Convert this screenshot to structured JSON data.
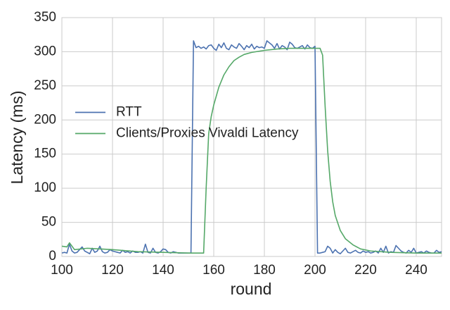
{
  "chart_data": {
    "type": "line",
    "x_label": "round",
    "y_label": "Latency (ms)",
    "xlim": [
      100,
      250
    ],
    "xticks": [
      100,
      120,
      140,
      160,
      180,
      200,
      220,
      240
    ],
    "ylim": [
      0,
      350
    ],
    "yticks": [
      0,
      50,
      100,
      150,
      200,
      250,
      300,
      350
    ],
    "grid": true,
    "legend": "center left",
    "series": [
      {
        "name": "RTT",
        "color": "#4c72b0",
        "x": [
          100,
          101,
          102,
          103,
          104,
          105,
          106,
          107,
          108,
          109,
          110,
          111,
          112,
          113,
          114,
          115,
          116,
          117,
          118,
          119,
          120,
          121,
          122,
          123,
          124,
          125,
          126,
          127,
          128,
          129,
          130,
          131,
          132,
          133,
          134,
          135,
          136,
          137,
          138,
          139,
          140,
          141,
          142,
          143,
          144,
          145,
          146,
          147,
          148,
          149,
          150,
          151,
          152,
          153,
          154,
          155,
          156,
          157,
          158,
          159,
          160,
          161,
          162,
          163,
          164,
          165,
          166,
          167,
          168,
          169,
          170,
          171,
          172,
          173,
          174,
          175,
          176,
          177,
          178,
          179,
          180,
          181,
          182,
          183,
          184,
          185,
          186,
          187,
          188,
          189,
          190,
          191,
          192,
          193,
          194,
          195,
          196,
          197,
          198,
          199,
          200,
          201,
          202,
          203,
          204,
          205,
          206,
          207,
          208,
          209,
          210,
          211,
          212,
          213,
          214,
          215,
          216,
          217,
          218,
          219,
          220,
          221,
          222,
          223,
          224,
          225,
          226,
          227,
          228,
          229,
          230,
          231,
          232,
          233,
          234,
          235,
          236,
          237,
          238,
          239,
          240,
          241,
          242,
          243,
          244,
          245,
          246,
          247,
          248,
          249,
          250
        ],
        "values": [
          5,
          6,
          5,
          18,
          8,
          5,
          6,
          10,
          14,
          8,
          6,
          4,
          12,
          6,
          8,
          15,
          7,
          5,
          6,
          10,
          8,
          7,
          6,
          5,
          9,
          6,
          7,
          5,
          8,
          6,
          6,
          7,
          5,
          18,
          6,
          5,
          12,
          6,
          5,
          7,
          11,
          10,
          6,
          5,
          7,
          6,
          5,
          5,
          5,
          5,
          5,
          5,
          316,
          306,
          308,
          305,
          307,
          304,
          309,
          310,
          305,
          302,
          311,
          306,
          313,
          305,
          303,
          310,
          307,
          305,
          312,
          308,
          303,
          309,
          306,
          311,
          304,
          308,
          306,
          307,
          305,
          316,
          313,
          310,
          305,
          312,
          304,
          309,
          307,
          303,
          314,
          311,
          306,
          305,
          307,
          309,
          304,
          310,
          306,
          305,
          308,
          5,
          5,
          6,
          7,
          15,
          12,
          5,
          10,
          6,
          4,
          8,
          12,
          6,
          5,
          7,
          9,
          6,
          5,
          8,
          6,
          7,
          5,
          6,
          8,
          5,
          12,
          6,
          15,
          5,
          7,
          6,
          16,
          12,
          8,
          6,
          5,
          9,
          6,
          12,
          5,
          6,
          7,
          5,
          8,
          6,
          5,
          5,
          9,
          6,
          7
        ]
      },
      {
        "name": "Clients/Proxies Vivaldi Latency",
        "color": "#55a868",
        "x": [
          100,
          102,
          103,
          105,
          110,
          115,
          120,
          130,
          140,
          150,
          156,
          157,
          158,
          159,
          160,
          162,
          164,
          166,
          168,
          170,
          172,
          175,
          180,
          185,
          190,
          195,
          202,
          203,
          204,
          205,
          206,
          207,
          208,
          210,
          212,
          215,
          218,
          222,
          230,
          240,
          250
        ],
        "values": [
          15,
          14,
          20,
          10,
          12,
          11,
          10,
          7,
          6,
          5,
          5,
          100,
          180,
          205,
          222,
          248,
          266,
          278,
          287,
          292,
          296,
          299,
          302,
          304,
          305,
          305,
          305,
          295,
          220,
          155,
          110,
          80,
          60,
          38,
          26,
          17,
          11,
          8,
          6,
          5,
          5
        ]
      }
    ]
  }
}
